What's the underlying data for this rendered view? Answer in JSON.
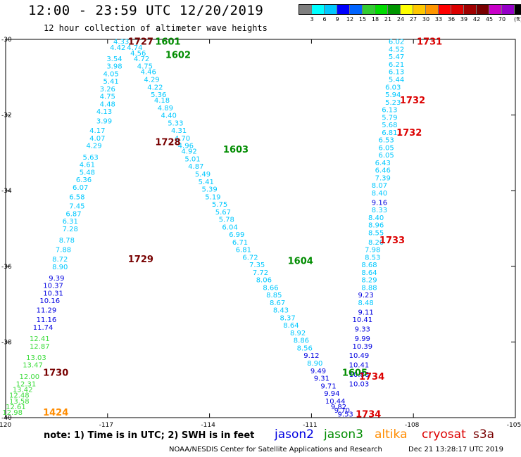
{
  "header": {
    "title": "12:00 - 23:59 UTC 12/20/2019",
    "subtitle": "12 hour collection of altimeter wave heights"
  },
  "colorbar": {
    "colors": [
      "#7f7f7f",
      "#00ffff",
      "#00c8ff",
      "#0000ff",
      "#0064ff",
      "#32cd32",
      "#00dc00",
      "#009600",
      "#ffff00",
      "#ffc800",
      "#ff9600",
      "#ff0000",
      "#dc0000",
      "#a00000",
      "#780000",
      "#c800c8",
      "#9600c8",
      "#000000"
    ],
    "labels": [
      "3",
      "6",
      "9",
      "12",
      "15",
      "18",
      "21",
      "24",
      "27",
      "30",
      "33",
      "36",
      "39",
      "42",
      "45",
      "70"
    ],
    "unit": "(ft)"
  },
  "legend": {
    "note": "note: 1) Time is in UTC; 2) SWH is in feet",
    "satellites": [
      {
        "name": "jason2",
        "color": "#0000e0"
      },
      {
        "name": "jason3",
        "color": "#008c00"
      },
      {
        "name": "altika",
        "color": "#ff8c00"
      },
      {
        "name": "cryosat",
        "color": "#dc0000"
      },
      {
        "name": "s3a",
        "color": "#780000"
      }
    ]
  },
  "footer": {
    "credit": "NOAA/NESDIS Center for Satellite Applications and Research",
    "stamp": "Dec 21 13:28:17 UTC 2019"
  },
  "chart_data": {
    "type": "scatter",
    "title": "12:00 - 23:59 UTC 12/20/2019",
    "subtitle": "12 hour collection of altimeter wave heights",
    "xlim": [
      -120,
      -105
    ],
    "ylim": [
      -40,
      -30
    ],
    "xticks": [
      -120,
      -117,
      -114,
      -111,
      -108,
      -105
    ],
    "yticks": [
      -30,
      -32,
      -34,
      -36,
      -38,
      -40
    ],
    "grid": false,
    "tracks": [
      {
        "name": "s3a",
        "color": "#780000",
        "pass_labels": [
          {
            "text": "1727",
            "x": -116.4,
            "y": -30.05
          },
          {
            "text": "1728",
            "x": -115.6,
            "y": -32.7
          },
          {
            "text": "1729",
            "x": -116.4,
            "y": -35.8
          },
          {
            "text": "1730",
            "x": -118.9,
            "y": -38.8
          }
        ],
        "swh": [
          {
            "x": -116.6,
            "y": -30.05,
            "v": "4.33"
          },
          {
            "x": -116.7,
            "y": -30.2,
            "v": "4.42"
          },
          {
            "x": -116.8,
            "y": -30.5,
            "v": "3.54"
          },
          {
            "x": -116.8,
            "y": -30.7,
            "v": "3.98"
          },
          {
            "x": -116.9,
            "y": -30.9,
            "v": "4.05"
          },
          {
            "x": -116.9,
            "y": -31.1,
            "v": "5.41"
          },
          {
            "x": -117.0,
            "y": -31.3,
            "v": "3.26"
          },
          {
            "x": -117.0,
            "y": -31.5,
            "v": "4.75"
          },
          {
            "x": -117.0,
            "y": -31.7,
            "v": "4.48"
          },
          {
            "x": -117.1,
            "y": -31.9,
            "v": "4.13"
          },
          {
            "x": -117.1,
            "y": -32.15,
            "v": "3.99"
          },
          {
            "x": -117.3,
            "y": -32.4,
            "v": "4.17"
          },
          {
            "x": -117.3,
            "y": -32.6,
            "v": "4.07"
          },
          {
            "x": -117.4,
            "y": -32.8,
            "v": "4.29"
          },
          {
            "x": -117.5,
            "y": -33.1,
            "v": "5.63"
          },
          {
            "x": -117.6,
            "y": -33.3,
            "v": "4.61"
          },
          {
            "x": -117.6,
            "y": -33.5,
            "v": "5.48"
          },
          {
            "x": -117.7,
            "y": -33.7,
            "v": "6.36"
          },
          {
            "x": -117.8,
            "y": -33.9,
            "v": "6.07"
          },
          {
            "x": -117.9,
            "y": -34.15,
            "v": "6.58"
          },
          {
            "x": -117.9,
            "y": -34.4,
            "v": "7.45"
          },
          {
            "x": -118.0,
            "y": -34.6,
            "v": "6.87"
          },
          {
            "x": -118.1,
            "y": -34.8,
            "v": "6.31"
          },
          {
            "x": -118.1,
            "y": -35.0,
            "v": "7.28"
          },
          {
            "x": -118.2,
            "y": -35.3,
            "v": "8.78"
          },
          {
            "x": -118.3,
            "y": -35.55,
            "v": "7.88"
          },
          {
            "x": -118.4,
            "y": -35.8,
            "v": "8.72"
          },
          {
            "x": -118.4,
            "y": -36.0,
            "v": "8.90"
          },
          {
            "x": -118.5,
            "y": -36.3,
            "v": "9.39"
          },
          {
            "x": -118.6,
            "y": -36.5,
            "v": "10.37"
          },
          {
            "x": -118.6,
            "y": -36.7,
            "v": "10.31"
          },
          {
            "x": -118.7,
            "y": -36.9,
            "v": "10.16"
          },
          {
            "x": -118.8,
            "y": -37.15,
            "v": "11.29"
          },
          {
            "x": -118.8,
            "y": -37.4,
            "v": "11.16"
          },
          {
            "x": -118.9,
            "y": -37.6,
            "v": "11.74"
          },
          {
            "x": -119.0,
            "y": -37.9,
            "v": "12.41"
          },
          {
            "x": -119.0,
            "y": -38.1,
            "v": "12.87"
          },
          {
            "x": -119.1,
            "y": -38.4,
            "v": "13.03"
          },
          {
            "x": -119.2,
            "y": -38.6,
            "v": "13.47"
          },
          {
            "x": -119.3,
            "y": -38.9,
            "v": "12.00"
          },
          {
            "x": -119.4,
            "y": -39.1,
            "v": "12.31"
          },
          {
            "x": -119.5,
            "y": -39.25,
            "v": "13.42"
          },
          {
            "x": -119.6,
            "y": -39.4,
            "v": "12.48"
          },
          {
            "x": -119.6,
            "y": -39.55,
            "v": "13.58"
          },
          {
            "x": -119.7,
            "y": -39.7,
            "v": "12.61"
          },
          {
            "x": -119.8,
            "y": -39.85,
            "v": "12.98"
          }
        ]
      },
      {
        "name": "jason3",
        "color": "#008c00",
        "pass_labels": [
          {
            "text": "1601",
            "x": -115.6,
            "y": -30.05
          },
          {
            "text": "1602",
            "x": -115.3,
            "y": -30.4
          },
          {
            "text": "1603",
            "x": -113.6,
            "y": -32.9
          },
          {
            "text": "1604",
            "x": -111.7,
            "y": -35.85
          },
          {
            "text": "1605",
            "x": -110.1,
            "y": -38.8
          }
        ],
        "swh": [
          {
            "x": -116.2,
            "y": -30.2,
            "v": "4.74"
          },
          {
            "x": -116.1,
            "y": -30.35,
            "v": "4.56"
          },
          {
            "x": -116.0,
            "y": -30.5,
            "v": "4.72"
          },
          {
            "x": -115.9,
            "y": -30.7,
            "v": "4.75"
          },
          {
            "x": -115.8,
            "y": -30.85,
            "v": "4.46"
          },
          {
            "x": -115.7,
            "y": -31.05,
            "v": "4.29"
          },
          {
            "x": -115.6,
            "y": -31.25,
            "v": "4.22"
          },
          {
            "x": -115.5,
            "y": -31.45,
            "v": "5.36"
          },
          {
            "x": -115.4,
            "y": -31.6,
            "v": "4.18"
          },
          {
            "x": -115.3,
            "y": -31.8,
            "v": "4.89"
          },
          {
            "x": -115.2,
            "y": -32.0,
            "v": "4.40"
          },
          {
            "x": -115.0,
            "y": -32.2,
            "v": "5.33"
          },
          {
            "x": -114.9,
            "y": -32.4,
            "v": "4.31"
          },
          {
            "x": -114.8,
            "y": -32.6,
            "v": "4.70"
          },
          {
            "x": -114.7,
            "y": -32.8,
            "v": "4.96"
          },
          {
            "x": -114.6,
            "y": -32.95,
            "v": "4.92"
          },
          {
            "x": -114.5,
            "y": -33.15,
            "v": "5.01"
          },
          {
            "x": -114.4,
            "y": -33.35,
            "v": "4.87"
          },
          {
            "x": -114.2,
            "y": -33.55,
            "v": "5.49"
          },
          {
            "x": -114.1,
            "y": -33.75,
            "v": "5.41"
          },
          {
            "x": -114.0,
            "y": -33.95,
            "v": "5.39"
          },
          {
            "x": -113.9,
            "y": -34.15,
            "v": "5.19"
          },
          {
            "x": -113.7,
            "y": -34.35,
            "v": "5.75"
          },
          {
            "x": -113.6,
            "y": -34.55,
            "v": "5.67"
          },
          {
            "x": -113.5,
            "y": -34.75,
            "v": "5.78"
          },
          {
            "x": -113.4,
            "y": -34.95,
            "v": "6.04"
          },
          {
            "x": -113.2,
            "y": -35.15,
            "v": "6.99"
          },
          {
            "x": -113.1,
            "y": -35.35,
            "v": "6.71"
          },
          {
            "x": -113.0,
            "y": -35.55,
            "v": "6.81"
          },
          {
            "x": -112.8,
            "y": -35.75,
            "v": "6.72"
          },
          {
            "x": -112.6,
            "y": -35.95,
            "v": "7.35"
          },
          {
            "x": -112.5,
            "y": -36.15,
            "v": "7.72"
          },
          {
            "x": -112.4,
            "y": -36.35,
            "v": "8.06"
          },
          {
            "x": -112.2,
            "y": -36.55,
            "v": "8.66"
          },
          {
            "x": -112.1,
            "y": -36.75,
            "v": "8.85"
          },
          {
            "x": -112.0,
            "y": -36.95,
            "v": "8.67"
          },
          {
            "x": -111.9,
            "y": -37.15,
            "v": "8.43"
          },
          {
            "x": -111.7,
            "y": -37.35,
            "v": "8.37"
          },
          {
            "x": -111.6,
            "y": -37.55,
            "v": "8.64"
          },
          {
            "x": -111.4,
            "y": -37.75,
            "v": "8.92"
          },
          {
            "x": -111.3,
            "y": -37.95,
            "v": "8.86"
          },
          {
            "x": -111.2,
            "y": -38.15,
            "v": "8.56"
          },
          {
            "x": -111.0,
            "y": -38.35,
            "v": "9.12"
          },
          {
            "x": -110.9,
            "y": -38.55,
            "v": "8.90"
          },
          {
            "x": -110.8,
            "y": -38.75,
            "v": "9.49"
          },
          {
            "x": -110.7,
            "y": -38.95,
            "v": "9.31"
          },
          {
            "x": -110.5,
            "y": -39.15,
            "v": "9.71"
          },
          {
            "x": -110.4,
            "y": -39.35,
            "v": "9.94"
          },
          {
            "x": -110.3,
            "y": -39.55,
            "v": "10.44"
          },
          {
            "x": -110.2,
            "y": -39.7,
            "v": "9.82"
          },
          {
            "x": -110.1,
            "y": -39.8,
            "v": "9.70"
          },
          {
            "x": -110.0,
            "y": -39.9,
            "v": "9.53"
          }
        ]
      },
      {
        "name": "cryosat",
        "color": "#dc0000",
        "pass_labels": [
          {
            "text": "1731",
            "x": -107.9,
            "y": -30.05
          },
          {
            "text": "1732",
            "x": -108.4,
            "y": -31.6
          },
          {
            "text": "1732",
            "x": -108.5,
            "y": -32.45
          },
          {
            "text": "1733",
            "x": -109.0,
            "y": -35.3
          },
          {
            "text": "1734",
            "x": -109.6,
            "y": -38.9
          },
          {
            "text": "1734",
            "x": -109.7,
            "y": -39.9
          }
        ],
        "swh": [
          {
            "x": -108.5,
            "y": -30.05,
            "v": "6.02"
          },
          {
            "x": -108.5,
            "y": -30.25,
            "v": "4.52"
          },
          {
            "x": -108.5,
            "y": -30.45,
            "v": "5.47"
          },
          {
            "x": -108.5,
            "y": -30.65,
            "v": "6.21"
          },
          {
            "x": -108.5,
            "y": -30.85,
            "v": "6.13"
          },
          {
            "x": -108.5,
            "y": -31.05,
            "v": "5.44"
          },
          {
            "x": -108.6,
            "y": -31.25,
            "v": "6.03"
          },
          {
            "x": -108.6,
            "y": -31.45,
            "v": "5.94"
          },
          {
            "x": -108.6,
            "y": -31.65,
            "v": "5.23"
          },
          {
            "x": -108.7,
            "y": -31.85,
            "v": "6.13"
          },
          {
            "x": -108.7,
            "y": -32.05,
            "v": "5.79"
          },
          {
            "x": -108.7,
            "y": -32.25,
            "v": "5.68"
          },
          {
            "x": -108.7,
            "y": -32.45,
            "v": "6.81"
          },
          {
            "x": -108.8,
            "y": -32.65,
            "v": "6.53"
          },
          {
            "x": -108.8,
            "y": -32.85,
            "v": "6.05"
          },
          {
            "x": -108.8,
            "y": -33.05,
            "v": "6.05"
          },
          {
            "x": -108.9,
            "y": -33.25,
            "v": "6.43"
          },
          {
            "x": -108.9,
            "y": -33.45,
            "v": "6.46"
          },
          {
            "x": -108.9,
            "y": -33.65,
            "v": "7.39"
          },
          {
            "x": -109.0,
            "y": -33.85,
            "v": "8.07"
          },
          {
            "x": -109.0,
            "y": -34.05,
            "v": "8.40"
          },
          {
            "x": -109.0,
            "y": -34.3,
            "v": "9.16"
          },
          {
            "x": -109.0,
            "y": -34.5,
            "v": "8.33"
          },
          {
            "x": -109.1,
            "y": -34.7,
            "v": "8.40"
          },
          {
            "x": -109.1,
            "y": -34.9,
            "v": "8.96"
          },
          {
            "x": -109.1,
            "y": -35.1,
            "v": "8.55"
          },
          {
            "x": -109.1,
            "y": -35.35,
            "v": "8.20"
          },
          {
            "x": -109.2,
            "y": -35.55,
            "v": "7.98"
          },
          {
            "x": -109.2,
            "y": -35.75,
            "v": "8.53"
          },
          {
            "x": -109.3,
            "y": -35.95,
            "v": "8.68"
          },
          {
            "x": -109.3,
            "y": -36.15,
            "v": "8.64"
          },
          {
            "x": -109.3,
            "y": -36.35,
            "v": "8.29"
          },
          {
            "x": -109.3,
            "y": -36.55,
            "v": "8.88"
          },
          {
            "x": -109.4,
            "y": -36.75,
            "v": "9.23"
          },
          {
            "x": -109.4,
            "y": -36.95,
            "v": "8.48"
          },
          {
            "x": -109.4,
            "y": -37.2,
            "v": "9.11"
          },
          {
            "x": -109.5,
            "y": -37.4,
            "v": "10.41"
          },
          {
            "x": -109.5,
            "y": -37.65,
            "v": "9.33"
          },
          {
            "x": -109.5,
            "y": -37.9,
            "v": "9.99"
          },
          {
            "x": -109.5,
            "y": -38.1,
            "v": "10.39"
          },
          {
            "x": -109.6,
            "y": -38.35,
            "v": "10.49"
          },
          {
            "x": -109.6,
            "y": -38.6,
            "v": "10.41"
          },
          {
            "x": -109.6,
            "y": -38.85,
            "v": "10.86"
          },
          {
            "x": -109.6,
            "y": -39.1,
            "v": "10.03"
          }
        ]
      },
      {
        "name": "altika",
        "color": "#ff8c00",
        "pass_labels": [
          {
            "text": "1424",
            "x": -118.9,
            "y": -39.85
          }
        ],
        "swh": []
      }
    ]
  }
}
